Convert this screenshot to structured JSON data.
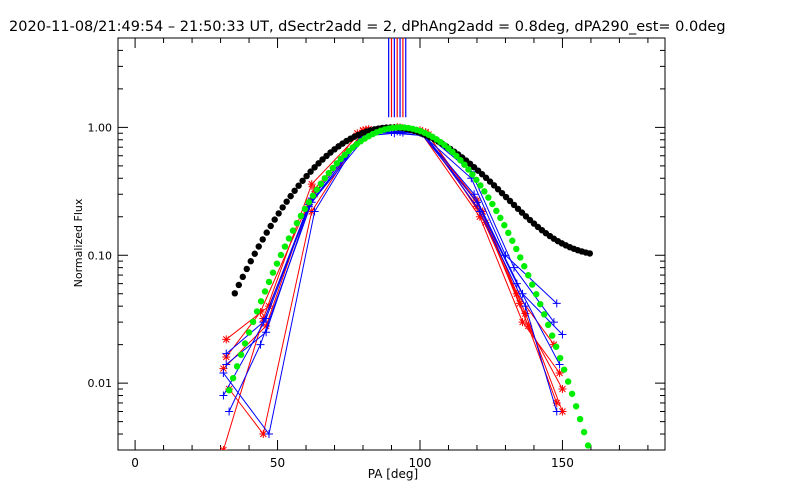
{
  "chart_data": {
    "type": "line",
    "title": "2020-11-08/21:49:54 – 21:50:33 UT, dSectr2add = 2, dPhAng2add = 0.8deg, dPA290_est=  0.0deg",
    "xlabel": "PA [deg]",
    "ylabel": "Normalized Flux",
    "xlim": [
      -6,
      186
    ],
    "ylim": [
      0.003,
      5.0
    ],
    "yscale": "log",
    "xticks": [
      0,
      50,
      100,
      150
    ],
    "xtick_labels": [
      "0",
      "50",
      "100",
      "150"
    ],
    "yticks": [
      0.01,
      0.1,
      1.0
    ],
    "ytick_labels": [
      "0.01",
      "0.10",
      "1.00"
    ],
    "colors": {
      "red": "#ff0000",
      "blue": "#0000ff",
      "black": "#000000",
      "green": "#00ee00"
    },
    "vertical_lines": {
      "x": [
        89,
        90,
        91,
        92,
        93,
        94,
        95
      ],
      "y_from": 1.2,
      "y_to": 5.0,
      "colors": [
        "#0000ff",
        "#ff0000",
        "#0000ff",
        "#ff0000",
        "#0000ff",
        "#ff0000",
        "#0000ff"
      ]
    },
    "series": [
      {
        "name": "red-1",
        "color": "#ff0000",
        "marker": "asterisk",
        "x": [
          31,
          45,
          62,
          80,
          92,
          100,
          120,
          135,
          148
        ],
        "y": [
          0.003,
          0.032,
          0.36,
          0.95,
          1.0,
          0.95,
          0.27,
          0.042,
          0.007
        ]
      },
      {
        "name": "red-2",
        "color": "#ff0000",
        "marker": "asterisk",
        "x": [
          32,
          47,
          63,
          82,
          93,
          102,
          122,
          137,
          150
        ],
        "y": [
          0.022,
          0.04,
          0.3,
          0.97,
          1.0,
          0.92,
          0.22,
          0.035,
          0.006
        ]
      },
      {
        "name": "red-3",
        "color": "#ff0000",
        "marker": "asterisk",
        "x": [
          31,
          46,
          61,
          78,
          90,
          100,
          121,
          136,
          149
        ],
        "y": [
          0.013,
          0.028,
          0.26,
          0.9,
          0.98,
          0.93,
          0.2,
          0.03,
          0.012
        ]
      },
      {
        "name": "red-4",
        "color": "#ff0000",
        "marker": "asterisk",
        "x": [
          33,
          45,
          62,
          80,
          91,
          101,
          120,
          134,
          147
        ],
        "y": [
          0.009,
          0.004,
          0.22,
          0.94,
          0.99,
          0.9,
          0.24,
          0.05,
          0.02
        ]
      },
      {
        "name": "red-5",
        "color": "#ff0000",
        "marker": "asterisk",
        "x": [
          32,
          44,
          63,
          81,
          92,
          103,
          123,
          138,
          150
        ],
        "y": [
          0.016,
          0.036,
          0.33,
          0.96,
          1.0,
          0.88,
          0.18,
          0.028,
          0.009
        ]
      },
      {
        "name": "blue-1",
        "color": "#0000ff",
        "marker": "plus",
        "x": [
          31,
          46,
          62,
          80,
          92,
          100,
          118,
          130,
          148
        ],
        "y": [
          0.008,
          0.032,
          0.28,
          0.88,
          0.93,
          0.91,
          0.4,
          0.1,
          0.042
        ]
      },
      {
        "name": "blue-2",
        "color": "#0000ff",
        "marker": "plus",
        "x": [
          32,
          45,
          61,
          81,
          93,
          101,
          119,
          136,
          150
        ],
        "y": [
          0.017,
          0.03,
          0.25,
          0.9,
          0.92,
          0.89,
          0.3,
          0.05,
          0.024
        ]
      },
      {
        "name": "blue-3",
        "color": "#0000ff",
        "marker": "plus",
        "x": [
          31,
          47,
          63,
          79,
          91,
          102,
          121,
          137,
          148
        ],
        "y": [
          0.012,
          0.004,
          0.22,
          0.85,
          0.9,
          0.86,
          0.22,
          0.04,
          0.006
        ]
      },
      {
        "name": "blue-4",
        "color": "#0000ff",
        "marker": "plus",
        "x": [
          33,
          44,
          62,
          82,
          94,
          100,
          120,
          134,
          149
        ],
        "y": [
          0.006,
          0.02,
          0.26,
          0.9,
          0.91,
          0.92,
          0.26,
          0.06,
          0.014
        ]
      },
      {
        "name": "blue-5",
        "color": "#0000ff",
        "marker": "plus",
        "x": [
          32,
          46,
          61,
          80,
          90,
          103,
          118,
          133,
          147
        ],
        "y": [
          0.014,
          0.025,
          0.24,
          0.88,
          0.92,
          0.85,
          0.45,
          0.08,
          0.03
        ]
      },
      {
        "name": "black-model",
        "color": "#000000",
        "marker": "dot",
        "model": "gauss",
        "params": {
          "amp": 1.0,
          "center": 90,
          "sigma": 22.5,
          "right_floor": 0.095,
          "right_floor_start": 100
        },
        "x_range": [
          35,
          160
        ],
        "step": 1.4
      },
      {
        "name": "green-model",
        "color": "#00ee00",
        "marker": "dot",
        "model": "gauss",
        "params": {
          "amp": 1.0,
          "center": 93,
          "sigma": 19.5
        },
        "x_range": [
          33,
          160
        ],
        "step": 1.4
      }
    ]
  }
}
